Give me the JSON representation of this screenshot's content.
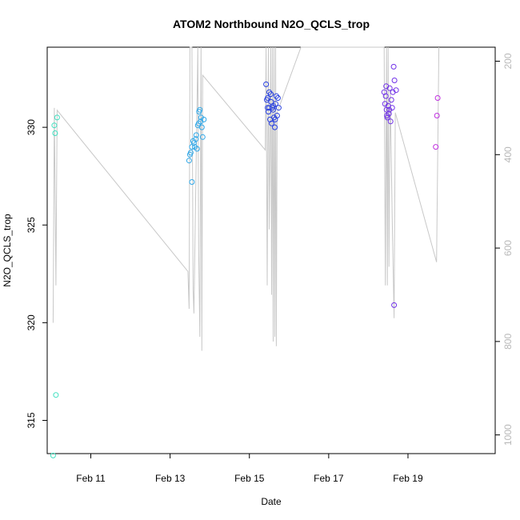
{
  "chart_data": {
    "type": "scatter",
    "title": "ATOM2 Northbound N2O_QCLS_trop",
    "xlabel": "Date",
    "ylabel": "N2O_QCLS_trop",
    "xlim_day": [
      9.9,
      21.2
    ],
    "ylim": [
      313.3,
      334.1
    ],
    "y2lim": [
      1040,
      170
    ],
    "x_ticks": [
      {
        "day": 11,
        "label": "Feb 11"
      },
      {
        "day": 13,
        "label": "Feb 13"
      },
      {
        "day": 15,
        "label": "Feb 15"
      },
      {
        "day": 17,
        "label": "Feb 17"
      },
      {
        "day": 19,
        "label": "Feb 19"
      }
    ],
    "y_ticks": [
      315,
      320,
      325,
      330
    ],
    "y2_ticks": [
      200,
      400,
      600,
      800,
      1000
    ],
    "series": [
      {
        "color": "#40e0c0",
        "points": [
          [
            10.05,
            313.2
          ],
          [
            10.08,
            330.1
          ],
          [
            10.1,
            329.7
          ],
          [
            10.15,
            330.5
          ],
          [
            10.12,
            316.3
          ]
        ]
      },
      {
        "color": "#30a8e8",
        "points": [
          [
            13.48,
            328.3
          ],
          [
            13.5,
            328.6
          ],
          [
            13.52,
            328.7
          ],
          [
            13.55,
            329.0
          ],
          [
            13.6,
            329.2
          ],
          [
            13.62,
            329.0
          ],
          [
            13.65,
            329.4
          ],
          [
            13.68,
            328.9
          ],
          [
            13.7,
            330.1
          ],
          [
            13.73,
            330.8
          ],
          [
            13.75,
            330.9
          ],
          [
            13.77,
            330.3
          ],
          [
            13.8,
            330.0
          ],
          [
            13.82,
            329.5
          ],
          [
            13.85,
            330.4
          ],
          [
            13.72,
            330.2
          ],
          [
            13.55,
            327.2
          ],
          [
            13.58,
            329.3
          ],
          [
            13.66,
            329.6
          ],
          [
            13.78,
            330.5
          ]
        ]
      },
      {
        "color": "#2840e0",
        "points": [
          [
            15.42,
            332.2
          ],
          [
            15.44,
            331.4
          ],
          [
            15.46,
            331.5
          ],
          [
            15.48,
            330.8
          ],
          [
            15.5,
            331.0
          ],
          [
            15.52,
            330.4
          ],
          [
            15.54,
            331.7
          ],
          [
            15.56,
            330.2
          ],
          [
            15.58,
            331.0
          ],
          [
            15.6,
            330.9
          ],
          [
            15.62,
            330.5
          ],
          [
            15.64,
            330.0
          ],
          [
            15.66,
            331.2
          ],
          [
            15.68,
            331.6
          ],
          [
            15.7,
            330.6
          ],
          [
            15.72,
            331.5
          ],
          [
            15.46,
            331.0
          ],
          [
            15.5,
            331.8
          ],
          [
            15.55,
            331.3
          ],
          [
            15.6,
            331.1
          ],
          [
            15.65,
            330.4
          ],
          [
            15.74,
            331.0
          ]
        ]
      },
      {
        "color": "#7030e8",
        "points": [
          [
            18.4,
            331.8
          ],
          [
            18.42,
            331.2
          ],
          [
            18.44,
            331.6
          ],
          [
            18.46,
            330.9
          ],
          [
            18.48,
            330.5
          ],
          [
            18.5,
            331.1
          ],
          [
            18.52,
            330.7
          ],
          [
            18.54,
            332.0
          ],
          [
            18.56,
            330.3
          ],
          [
            18.58,
            331.4
          ],
          [
            18.6,
            331.0
          ],
          [
            18.62,
            331.8
          ],
          [
            18.64,
            333.1
          ],
          [
            18.66,
            332.4
          ],
          [
            18.7,
            331.9
          ],
          [
            18.47,
            330.6
          ],
          [
            18.53,
            330.9
          ],
          [
            18.65,
            320.9
          ],
          [
            18.45,
            332.1
          ]
        ]
      },
      {
        "color": "#c030e0",
        "points": [
          [
            19.7,
            329.0
          ],
          [
            19.73,
            330.6
          ],
          [
            19.75,
            331.5
          ]
        ]
      }
    ],
    "pressure_line": {
      "color": "#c8c8c8",
      "points": [
        [
          10.05,
          760
        ],
        [
          10.08,
          300
        ],
        [
          10.12,
          680
        ],
        [
          10.15,
          305
        ],
        [
          13.45,
          650
        ],
        [
          13.48,
          730
        ],
        [
          13.5,
          150
        ],
        [
          13.55,
          150
        ],
        [
          13.58,
          690
        ],
        [
          13.6,
          740
        ],
        [
          13.7,
          150
        ],
        [
          13.72,
          600
        ],
        [
          13.75,
          790
        ],
        [
          13.78,
          150
        ],
        [
          13.8,
          820
        ],
        [
          13.82,
          230
        ],
        [
          15.4,
          390
        ],
        [
          15.42,
          150
        ],
        [
          15.45,
          680
        ],
        [
          15.48,
          150
        ],
        [
          15.5,
          560
        ],
        [
          15.52,
          400
        ],
        [
          15.54,
          150
        ],
        [
          15.56,
          700
        ],
        [
          15.58,
          150
        ],
        [
          15.6,
          800
        ],
        [
          15.62,
          150
        ],
        [
          15.64,
          790
        ],
        [
          15.66,
          150
        ],
        [
          15.68,
          810
        ],
        [
          15.7,
          310
        ],
        [
          16.3,
          130
        ],
        [
          18.4,
          130
        ],
        [
          18.43,
          680
        ],
        [
          18.46,
          150
        ],
        [
          18.48,
          680
        ],
        [
          18.5,
          150
        ],
        [
          18.52,
          640
        ],
        [
          18.55,
          260
        ],
        [
          18.6,
          530
        ],
        [
          18.65,
          750
        ],
        [
          18.68,
          310
        ],
        [
          19.72,
          630
        ],
        [
          19.78,
          150
        ]
      ]
    }
  }
}
